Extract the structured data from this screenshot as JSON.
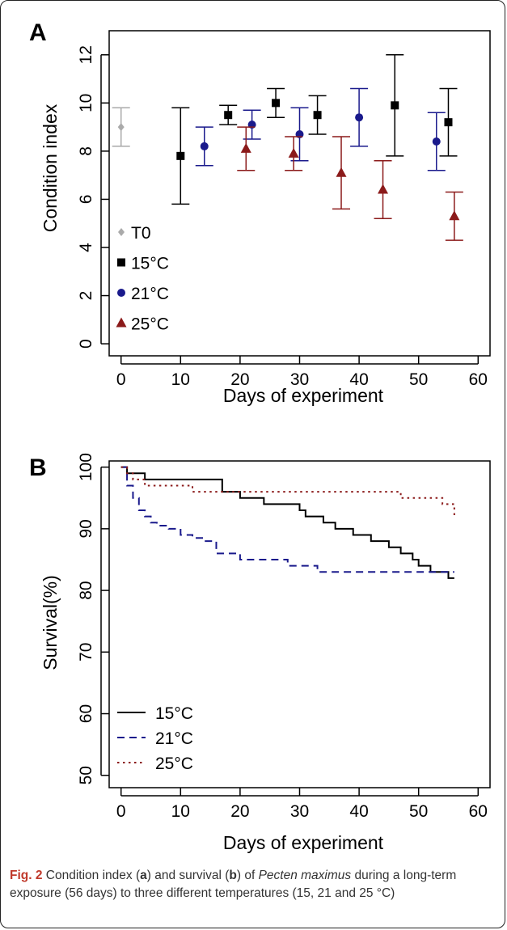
{
  "figure": {
    "caption": {
      "label": "Fig. 2",
      "part1": " Condition index (",
      "a": "a",
      "part2": ") and survival (",
      "b": "b",
      "part3": ") of ",
      "species": "Pecten maximus",
      "part4": " during a long-term exposure (56 days) to three different temperatures (15, 21 and 25 °C)"
    }
  },
  "colors": {
    "T0": "#aaaaaa",
    "15C": "#000000",
    "21C": "#1a1a8c",
    "25C": "#8b1a1a"
  },
  "chart_data": [
    {
      "panel": "A",
      "type": "scatter",
      "error_bars": true,
      "xlabel": "Days of experiment",
      "ylabel": "Condition index",
      "xlim": [
        -2,
        62
      ],
      "ylim": [
        -0.5,
        13
      ],
      "xticks": [
        0,
        10,
        20,
        30,
        40,
        50,
        60
      ],
      "yticks": [
        0,
        2,
        4,
        6,
        8,
        10,
        12
      ],
      "legend_position": "bottom-left",
      "series": [
        {
          "name": "T0",
          "marker": "diamond",
          "color": "#aaaaaa",
          "points": [
            {
              "x": 0,
              "y": 9.0,
              "lo": 8.2,
              "hi": 9.8
            }
          ]
        },
        {
          "name": "15°C",
          "marker": "square",
          "color": "#000000",
          "points": [
            {
              "x": 10,
              "y": 7.8,
              "lo": 5.8,
              "hi": 9.8
            },
            {
              "x": 18,
              "y": 9.5,
              "lo": 9.1,
              "hi": 9.9
            },
            {
              "x": 26,
              "y": 10.0,
              "lo": 9.4,
              "hi": 10.6
            },
            {
              "x": 33,
              "y": 9.5,
              "lo": 8.7,
              "hi": 10.3
            },
            {
              "x": 46,
              "y": 9.9,
              "lo": 7.8,
              "hi": 12.0
            },
            {
              "x": 55,
              "y": 9.2,
              "lo": 7.8,
              "hi": 10.6
            }
          ]
        },
        {
          "name": "21°C",
          "marker": "circle",
          "color": "#1a1a8c",
          "points": [
            {
              "x": 14,
              "y": 8.2,
              "lo": 7.4,
              "hi": 9.0
            },
            {
              "x": 22,
              "y": 9.1,
              "lo": 8.5,
              "hi": 9.7
            },
            {
              "x": 30,
              "y": 8.7,
              "lo": 7.6,
              "hi": 9.8
            },
            {
              "x": 40,
              "y": 9.4,
              "lo": 8.2,
              "hi": 10.6
            },
            {
              "x": 53,
              "y": 8.4,
              "lo": 7.2,
              "hi": 9.6
            }
          ]
        },
        {
          "name": "25°C",
          "marker": "triangle",
          "color": "#8b1a1a",
          "points": [
            {
              "x": 21,
              "y": 8.1,
              "lo": 7.2,
              "hi": 9.0
            },
            {
              "x": 29,
              "y": 7.9,
              "lo": 7.2,
              "hi": 8.6
            },
            {
              "x": 37,
              "y": 7.1,
              "lo": 5.6,
              "hi": 8.6
            },
            {
              "x": 44,
              "y": 6.4,
              "lo": 5.2,
              "hi": 7.6
            },
            {
              "x": 56,
              "y": 5.3,
              "lo": 4.3,
              "hi": 6.3
            }
          ]
        }
      ]
    },
    {
      "panel": "B",
      "type": "line",
      "xlabel": "Days of experiment",
      "ylabel": "Survival(%)",
      "xlim": [
        -2,
        62
      ],
      "ylim": [
        48,
        101
      ],
      "xticks": [
        0,
        10,
        20,
        30,
        40,
        50,
        60
      ],
      "yticks": [
        50,
        60,
        70,
        80,
        90,
        100
      ],
      "legend_position": "bottom-left",
      "series": [
        {
          "name": "15°C",
          "color": "#000000",
          "dash": "solid",
          "x": [
            0,
            1,
            3,
            4,
            15,
            17,
            19,
            20,
            23,
            24,
            29,
            30,
            31,
            33,
            34,
            36,
            37,
            39,
            40,
            42,
            44,
            45,
            47,
            48,
            49,
            50,
            52,
            55,
            56
          ],
          "y": [
            100,
            99,
            99,
            98,
            98,
            96,
            96,
            95,
            95,
            94,
            94,
            93,
            92,
            92,
            91,
            90,
            90,
            89,
            89,
            88,
            88,
            87,
            86,
            86,
            85,
            84,
            83,
            82,
            82
          ]
        },
        {
          "name": "21°C",
          "color": "#1a1a8c",
          "dash": "dashed",
          "x": [
            0,
            1,
            2,
            3,
            4,
            5,
            6,
            8,
            10,
            12,
            14,
            16,
            18,
            20,
            26,
            28,
            33,
            36,
            56
          ],
          "y": [
            100,
            97,
            95,
            93,
            92,
            91,
            90.5,
            90,
            89,
            88.5,
            88,
            86,
            86,
            85,
            85,
            84,
            83,
            83,
            83
          ]
        },
        {
          "name": "25°C",
          "color": "#8b1a1a",
          "dash": "dotted",
          "x": [
            0,
            1,
            2,
            4,
            6,
            10,
            12,
            16,
            45,
            47,
            50,
            52,
            54,
            56
          ],
          "y": [
            100,
            99,
            98,
            97,
            97,
            97,
            96,
            96,
            96,
            95,
            95,
            95,
            94,
            92
          ]
        }
      ]
    }
  ]
}
